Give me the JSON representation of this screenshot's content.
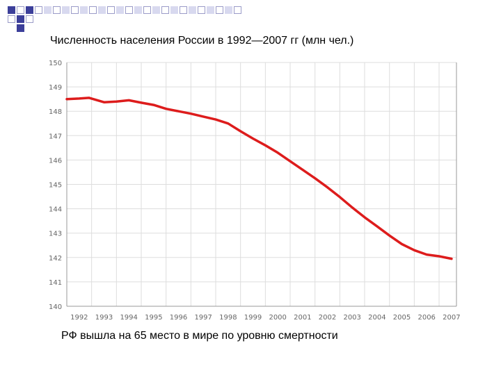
{
  "slide": {
    "title": "Численность населения России в 1992—2007 гг (млн чел.)",
    "caption": "РФ вышла на 65 место в мире по уровню смертности"
  },
  "colors": {
    "series": "#dd1c1c",
    "axis": "#999999",
    "grid": "#dddddd",
    "tick_text": "#666666",
    "decor_dark": "#3c3f9a",
    "decor_light": "#d8d9ef"
  },
  "chart_data": {
    "type": "line",
    "title": "Численность населения России в 1992—2007 гг (млн чел.)",
    "xlabel": "",
    "ylabel": "",
    "xlim": [
      1992,
      2007.7
    ],
    "ylim": [
      140,
      150
    ],
    "x_ticks": [
      "1992",
      "1993",
      "1994",
      "1995",
      "1996",
      "1997",
      "1998",
      "1999",
      "2000",
      "2001",
      "2002",
      "2003",
      "2004",
      "2005",
      "2006",
      "2007"
    ],
    "y_ticks": [
      "140",
      "141",
      "142",
      "143",
      "144",
      "145",
      "146",
      "147",
      "148",
      "149",
      "150"
    ],
    "grid": true,
    "series": [
      {
        "x": [
          1992.0,
          1992.5,
          1992.9,
          1993.5,
          1994.0,
          1994.5,
          1995.0,
          1995.5,
          1996.0,
          1996.5,
          1997.0,
          1997.5,
          1998.0,
          1998.5,
          1999.0,
          1999.5,
          2000.0,
          2000.5,
          2001.0,
          2001.5,
          2002.0,
          2002.5,
          2003.0,
          2003.5,
          2004.0,
          2004.5,
          2005.0,
          2005.5,
          2006.0,
          2006.5,
          2007.0,
          2007.5
        ],
        "y": [
          148.5,
          148.52,
          148.55,
          148.37,
          148.4,
          148.45,
          148.35,
          148.26,
          148.1,
          148.0,
          147.9,
          147.78,
          147.66,
          147.5,
          147.18,
          146.88,
          146.6,
          146.3,
          145.95,
          145.6,
          145.25,
          144.88,
          144.48,
          144.05,
          143.65,
          143.28,
          142.9,
          142.55,
          142.3,
          142.12,
          142.05,
          141.95
        ]
      }
    ]
  }
}
